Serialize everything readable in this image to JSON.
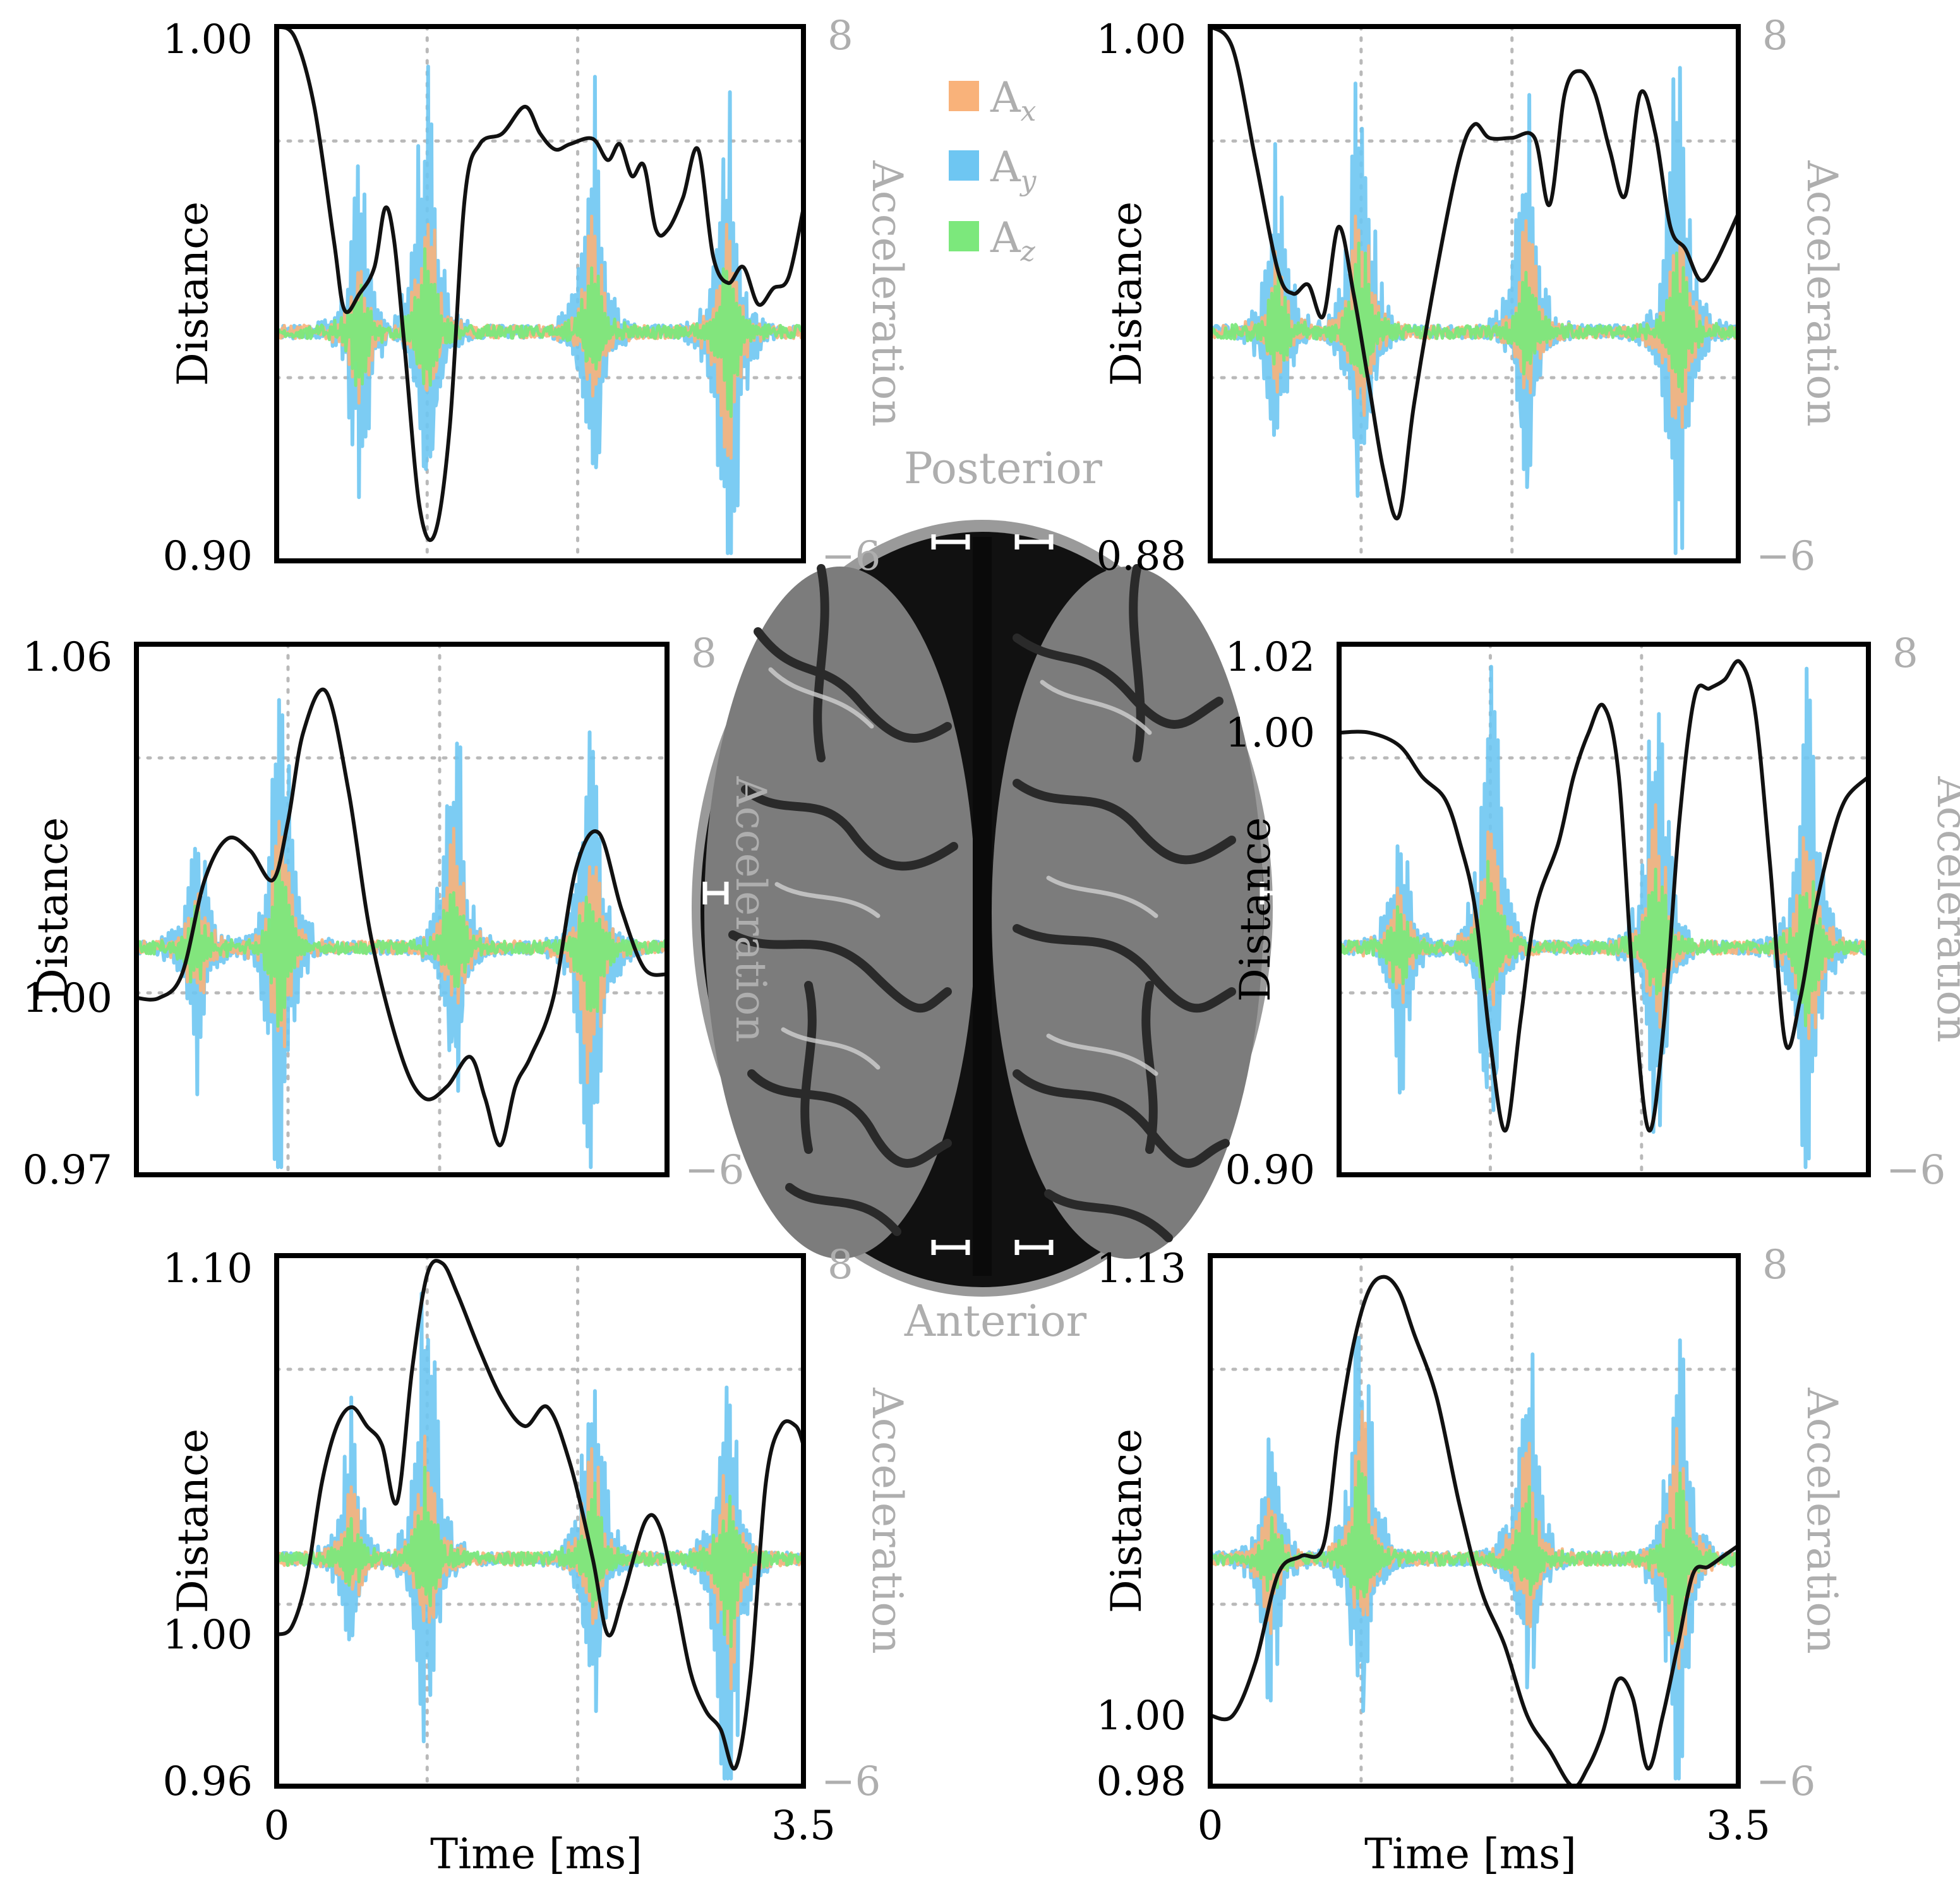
{
  "colors": {
    "distance": "#111111",
    "ax": "#F9B27A",
    "ay": "#6EC6F2",
    "az": "#7CE87C",
    "grid": "#B9B9B9",
    "acc_label": "#AEAEAE"
  },
  "legend": {
    "items": [
      {
        "key": "ax",
        "base": "A",
        "sub": "x"
      },
      {
        "key": "ay",
        "base": "A",
        "sub": "y"
      },
      {
        "key": "az",
        "base": "A",
        "sub": "z"
      }
    ]
  },
  "brain": {
    "top_label": "Posterior",
    "bottom_label": "Anterior"
  },
  "chart_data": [
    {
      "id": "top-left",
      "type": "line",
      "ylabel": "Distance",
      "y2label": "Acceleration",
      "xlabel": "",
      "xlim": [
        0,
        3.5
      ],
      "ylim": [
        0.9,
        1.0
      ],
      "y2lim": [
        -6,
        8
      ],
      "y_ticks": [
        "1.00",
        "0.90"
      ],
      "y2_ticks": [
        "8",
        "−6"
      ],
      "x_ticks": [],
      "distance": {
        "x": [
          0,
          0.12,
          0.25,
          0.38,
          0.45,
          0.55,
          0.65,
          0.72,
          0.78,
          0.85,
          0.95,
          1.05,
          1.15,
          1.25,
          1.35,
          1.5,
          1.65,
          1.75,
          1.85,
          1.95,
          2.1,
          2.2,
          2.28,
          2.36,
          2.44,
          2.52,
          2.6,
          2.7,
          2.8,
          2.9,
          3.0,
          3.1,
          3.2,
          3.3,
          3.4,
          3.5
        ],
        "y": [
          1.0,
          0.998,
          0.985,
          0.96,
          0.947,
          0.95,
          0.955,
          0.966,
          0.96,
          0.94,
          0.91,
          0.905,
          0.925,
          0.968,
          0.978,
          0.98,
          0.985,
          0.98,
          0.977,
          0.978,
          0.979,
          0.975,
          0.978,
          0.972,
          0.974,
          0.962,
          0.962,
          0.968,
          0.977,
          0.957,
          0.952,
          0.955,
          0.948,
          0.951,
          0.953,
          0.966
        ]
      },
      "bursts": [
        {
          "t": 0.55,
          "amp": 0.6
        },
        {
          "t": 1.0,
          "amp": 1.0
        },
        {
          "t": 2.1,
          "amp": 0.8
        },
        {
          "t": 3.0,
          "amp": 1.0
        }
      ]
    },
    {
      "id": "top-right",
      "type": "line",
      "ylabel": "Distance",
      "y2label": "Acceleration",
      "xlabel": "",
      "xlim": [
        0,
        3.5
      ],
      "ylim": [
        0.88,
        1.0
      ],
      "y2lim": [
        -6,
        8
      ],
      "y_ticks": [
        "1.00",
        "0.88"
      ],
      "y2_ticks": [
        "8",
        "−6"
      ],
      "x_ticks": [],
      "distance": {
        "x": [
          0,
          0.15,
          0.3,
          0.45,
          0.55,
          0.65,
          0.75,
          0.85,
          0.95,
          1.05,
          1.15,
          1.25,
          1.35,
          1.5,
          1.65,
          1.75,
          1.85,
          2.0,
          2.15,
          2.25,
          2.35,
          2.45,
          2.55,
          2.65,
          2.75,
          2.85,
          2.95,
          3.05,
          3.15,
          3.25,
          3.35,
          3.5
        ],
        "y": [
          1.0,
          0.995,
          0.97,
          0.945,
          0.94,
          0.942,
          0.935,
          0.955,
          0.94,
          0.92,
          0.9,
          0.89,
          0.915,
          0.945,
          0.97,
          0.978,
          0.975,
          0.975,
          0.975,
          0.96,
          0.985,
          0.99,
          0.985,
          0.972,
          0.962,
          0.985,
          0.976,
          0.955,
          0.95,
          0.943,
          0.947,
          0.958
        ]
      },
      "bursts": [
        {
          "t": 0.45,
          "amp": 0.6
        },
        {
          "t": 1.0,
          "amp": 1.0
        },
        {
          "t": 2.1,
          "amp": 0.8
        },
        {
          "t": 3.1,
          "amp": 1.0
        }
      ]
    },
    {
      "id": "middle-left",
      "type": "line",
      "ylabel": "Distance",
      "y2label": "Acceleration",
      "xlabel": "",
      "xlim": [
        0,
        3.5
      ],
      "ylim": [
        0.97,
        1.06
      ],
      "y2lim": [
        -6,
        8
      ],
      "y_ticks": [
        "1.06",
        "1.00",
        "0.97"
      ],
      "y2_ticks": [
        "8",
        "−6"
      ],
      "x_ticks": [],
      "distance": {
        "x": [
          0,
          0.15,
          0.3,
          0.45,
          0.6,
          0.75,
          0.9,
          1.0,
          1.1,
          1.25,
          1.4,
          1.55,
          1.75,
          1.9,
          2.05,
          2.2,
          2.3,
          2.4,
          2.5,
          2.6,
          2.75,
          2.9,
          3.05,
          3.2,
          3.35,
          3.5
        ],
        "y": [
          1.0,
          1.0,
          1.004,
          1.02,
          1.027,
          1.025,
          1.02,
          1.03,
          1.045,
          1.052,
          1.035,
          1.01,
          0.99,
          0.983,
          0.985,
          0.99,
          0.983,
          0.975,
          0.985,
          0.99,
          1.0,
          1.022,
          1.028,
          1.015,
          1.005,
          1.004
        ]
      },
      "bursts": [
        {
          "t": 0.4,
          "amp": 0.5
        },
        {
          "t": 0.95,
          "amp": 1.0
        },
        {
          "t": 2.1,
          "amp": 0.8
        },
        {
          "t": 3.0,
          "amp": 1.0
        }
      ]
    },
    {
      "id": "middle-right",
      "type": "line",
      "ylabel": "Distance",
      "y2label": "Acceleration",
      "xlabel": "",
      "xlim": [
        0,
        3.5
      ],
      "ylim": [
        0.9,
        1.02
      ],
      "y2lim": [
        -6,
        8
      ],
      "y_ticks": [
        "1.02",
        "1.00",
        "0.90"
      ],
      "y2_ticks": [
        "8",
        "−6"
      ],
      "x_ticks": [],
      "distance": {
        "x": [
          0,
          0.2,
          0.4,
          0.55,
          0.7,
          0.8,
          0.9,
          1.0,
          1.1,
          1.2,
          1.3,
          1.45,
          1.55,
          1.65,
          1.75,
          1.85,
          1.95,
          2.05,
          2.15,
          2.25,
          2.35,
          2.45,
          2.55,
          2.65,
          2.75,
          2.85,
          2.95,
          3.05,
          3.15,
          3.25,
          3.35,
          3.5
        ],
        "y": [
          1.0,
          1.0,
          0.997,
          0.99,
          0.985,
          0.975,
          0.96,
          0.93,
          0.91,
          0.935,
          0.96,
          0.975,
          0.99,
          1.0,
          1.006,
          0.99,
          0.94,
          0.91,
          0.935,
          0.98,
          1.008,
          1.01,
          1.012,
          1.016,
          1.005,
          0.97,
          0.93,
          0.94,
          0.96,
          0.975,
          0.985,
          0.99
        ]
      },
      "bursts": [
        {
          "t": 0.4,
          "amp": 0.5
        },
        {
          "t": 1.0,
          "amp": 1.0
        },
        {
          "t": 2.1,
          "amp": 1.0
        },
        {
          "t": 3.1,
          "amp": 1.0
        }
      ]
    },
    {
      "id": "bottom-left",
      "type": "line",
      "ylabel": "Distance",
      "y2label": "Acceleration",
      "xlabel": "Time [ms]",
      "xlim": [
        0,
        3.5
      ],
      "ylim": [
        0.96,
        1.1
      ],
      "y2lim": [
        -6,
        8
      ],
      "y_ticks": [
        "1.10",
        "1.00",
        "0.96"
      ],
      "y2_ticks": [
        "8",
        "−6"
      ],
      "x_ticks": [
        "0",
        "3.5"
      ],
      "distance": {
        "x": [
          0,
          0.1,
          0.2,
          0.3,
          0.4,
          0.5,
          0.6,
          0.7,
          0.8,
          0.9,
          1.0,
          1.1,
          1.2,
          1.35,
          1.5,
          1.65,
          1.8,
          1.95,
          2.1,
          2.2,
          2.3,
          2.45,
          2.55,
          2.65,
          2.75,
          2.85,
          2.95,
          3.05,
          3.15,
          3.25,
          3.35,
          3.45,
          3.5
        ],
        "y": [
          1.0,
          1.002,
          1.015,
          1.04,
          1.055,
          1.06,
          1.055,
          1.05,
          1.035,
          1.07,
          1.095,
          1.098,
          1.09,
          1.075,
          1.062,
          1.055,
          1.06,
          1.045,
          1.02,
          1.0,
          1.01,
          1.03,
          1.028,
          1.01,
          0.99,
          0.98,
          0.975,
          0.965,
          0.99,
          1.04,
          1.055,
          1.055,
          1.05
        ]
      },
      "bursts": [
        {
          "t": 0.5,
          "amp": 0.5
        },
        {
          "t": 1.0,
          "amp": 1.0
        },
        {
          "t": 2.1,
          "amp": 0.8
        },
        {
          "t": 3.0,
          "amp": 1.0
        }
      ]
    },
    {
      "id": "bottom-right",
      "type": "line",
      "ylabel": "Distance",
      "y2label": "Acceleration",
      "xlabel": "Time [ms]",
      "xlim": [
        0,
        3.5
      ],
      "ylim": [
        0.98,
        1.13
      ],
      "y2lim": [
        -6,
        8
      ],
      "y_ticks": [
        "1.13",
        "1.00",
        "0.98"
      ],
      "y2_ticks": [
        "8",
        "−6"
      ],
      "x_ticks": [
        "0",
        "3.5"
      ],
      "distance": {
        "x": [
          0,
          0.15,
          0.3,
          0.45,
          0.6,
          0.75,
          0.85,
          0.95,
          1.05,
          1.15,
          1.25,
          1.35,
          1.5,
          1.65,
          1.8,
          1.95,
          2.1,
          2.25,
          2.4,
          2.5,
          2.6,
          2.7,
          2.8,
          2.9,
          3.0,
          3.1,
          3.2,
          3.3,
          3.4,
          3.5
        ],
        "y": [
          1.0,
          1.0,
          1.015,
          1.04,
          1.045,
          1.048,
          1.08,
          1.105,
          1.12,
          1.124,
          1.12,
          1.108,
          1.09,
          1.06,
          1.035,
          1.02,
          1.0,
          0.99,
          0.98,
          0.985,
          0.995,
          1.01,
          1.005,
          0.985,
          1.0,
          1.02,
          1.04,
          1.042,
          1.045,
          1.048
        ]
      },
      "bursts": [
        {
          "t": 0.4,
          "amp": 0.5
        },
        {
          "t": 1.0,
          "amp": 1.0
        },
        {
          "t": 2.1,
          "amp": 0.8
        },
        {
          "t": 3.1,
          "amp": 1.0
        }
      ]
    }
  ]
}
